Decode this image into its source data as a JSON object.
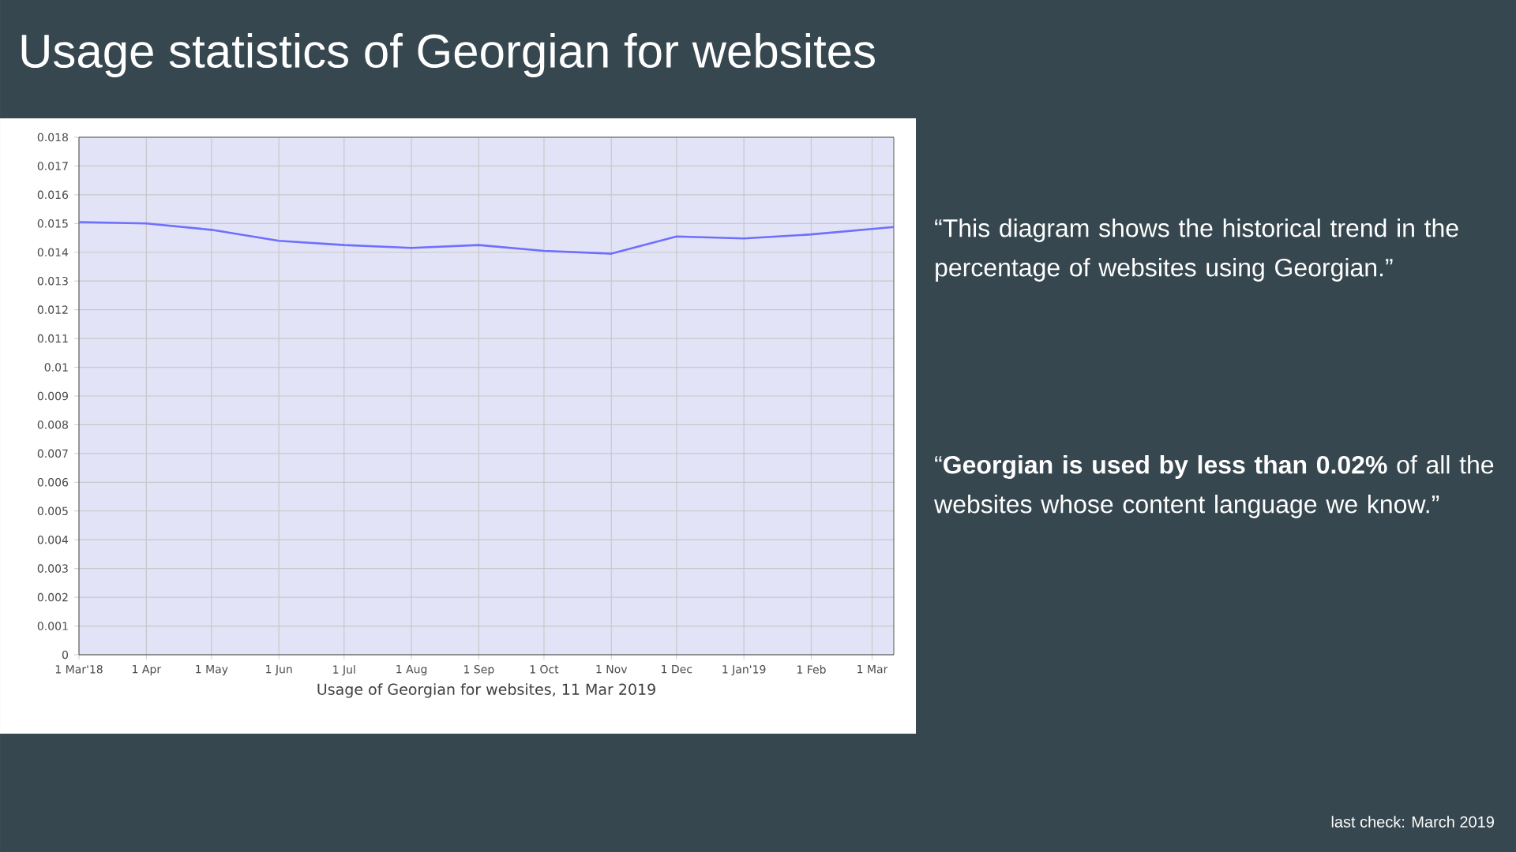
{
  "chart_data": {
    "type": "line",
    "title": "Usage statistics of Georgian for websites",
    "xlabel": "Usage of Georgian for websites, 11 Mar 2019",
    "x": [
      "2018-03-01",
      "2018-04-01",
      "2018-05-01",
      "2018-06-01",
      "2018-07-01",
      "2018-08-01",
      "2018-09-01",
      "2018-10-01",
      "2018-11-01",
      "2018-12-01",
      "2019-01-01",
      "2019-02-01",
      "2019-03-11"
    ],
    "series": [
      {
        "color": "#6f6fff",
        "values": [
          0.01505,
          0.015,
          0.01478,
          0.0144,
          0.01425,
          0.01415,
          0.01425,
          0.01405,
          0.01395,
          0.01455,
          0.01448,
          0.01462,
          0.01488
        ]
      }
    ],
    "xlim": [
      "2018-03-01",
      "2019-03-11"
    ],
    "xticks": [
      {
        "value": "2018-03-01",
        "label": "1 Mar'18"
      },
      {
        "value": "2018-04-01",
        "label": "1 Apr"
      },
      {
        "value": "2018-05-01",
        "label": "1 May"
      },
      {
        "value": "2018-06-01",
        "label": "1 Jun"
      },
      {
        "value": "2018-07-01",
        "label": "1 Jul"
      },
      {
        "value": "2018-08-01",
        "label": "1 Aug"
      },
      {
        "value": "2018-09-01",
        "label": "1 Sep"
      },
      {
        "value": "2018-10-01",
        "label": "1 Oct"
      },
      {
        "value": "2018-11-01",
        "label": "1 Nov"
      },
      {
        "value": "2018-12-01",
        "label": "1 Dec"
      },
      {
        "value": "2019-01-01",
        "label": "1 Jan'19"
      },
      {
        "value": "2019-02-01",
        "label": "1 Feb"
      },
      {
        "value": "2019-03-01",
        "label": "1 Mar"
      }
    ],
    "ylim": [
      0,
      0.018
    ],
    "yticks": [
      0,
      0.001,
      0.002,
      0.003,
      0.004,
      0.005,
      0.006,
      0.007,
      0.008,
      0.009,
      0.01,
      0.011,
      0.012,
      0.013,
      0.014,
      0.015,
      0.016,
      0.017,
      0.018
    ],
    "grid": true,
    "annotations": [
      "“This diagram shows the historical trend in the percentage of websites using Georgian.”",
      "“**Georgian is used by less than 0.02%** of all the websites whose content language we know.”",
      "last check: March 2019"
    ]
  }
}
